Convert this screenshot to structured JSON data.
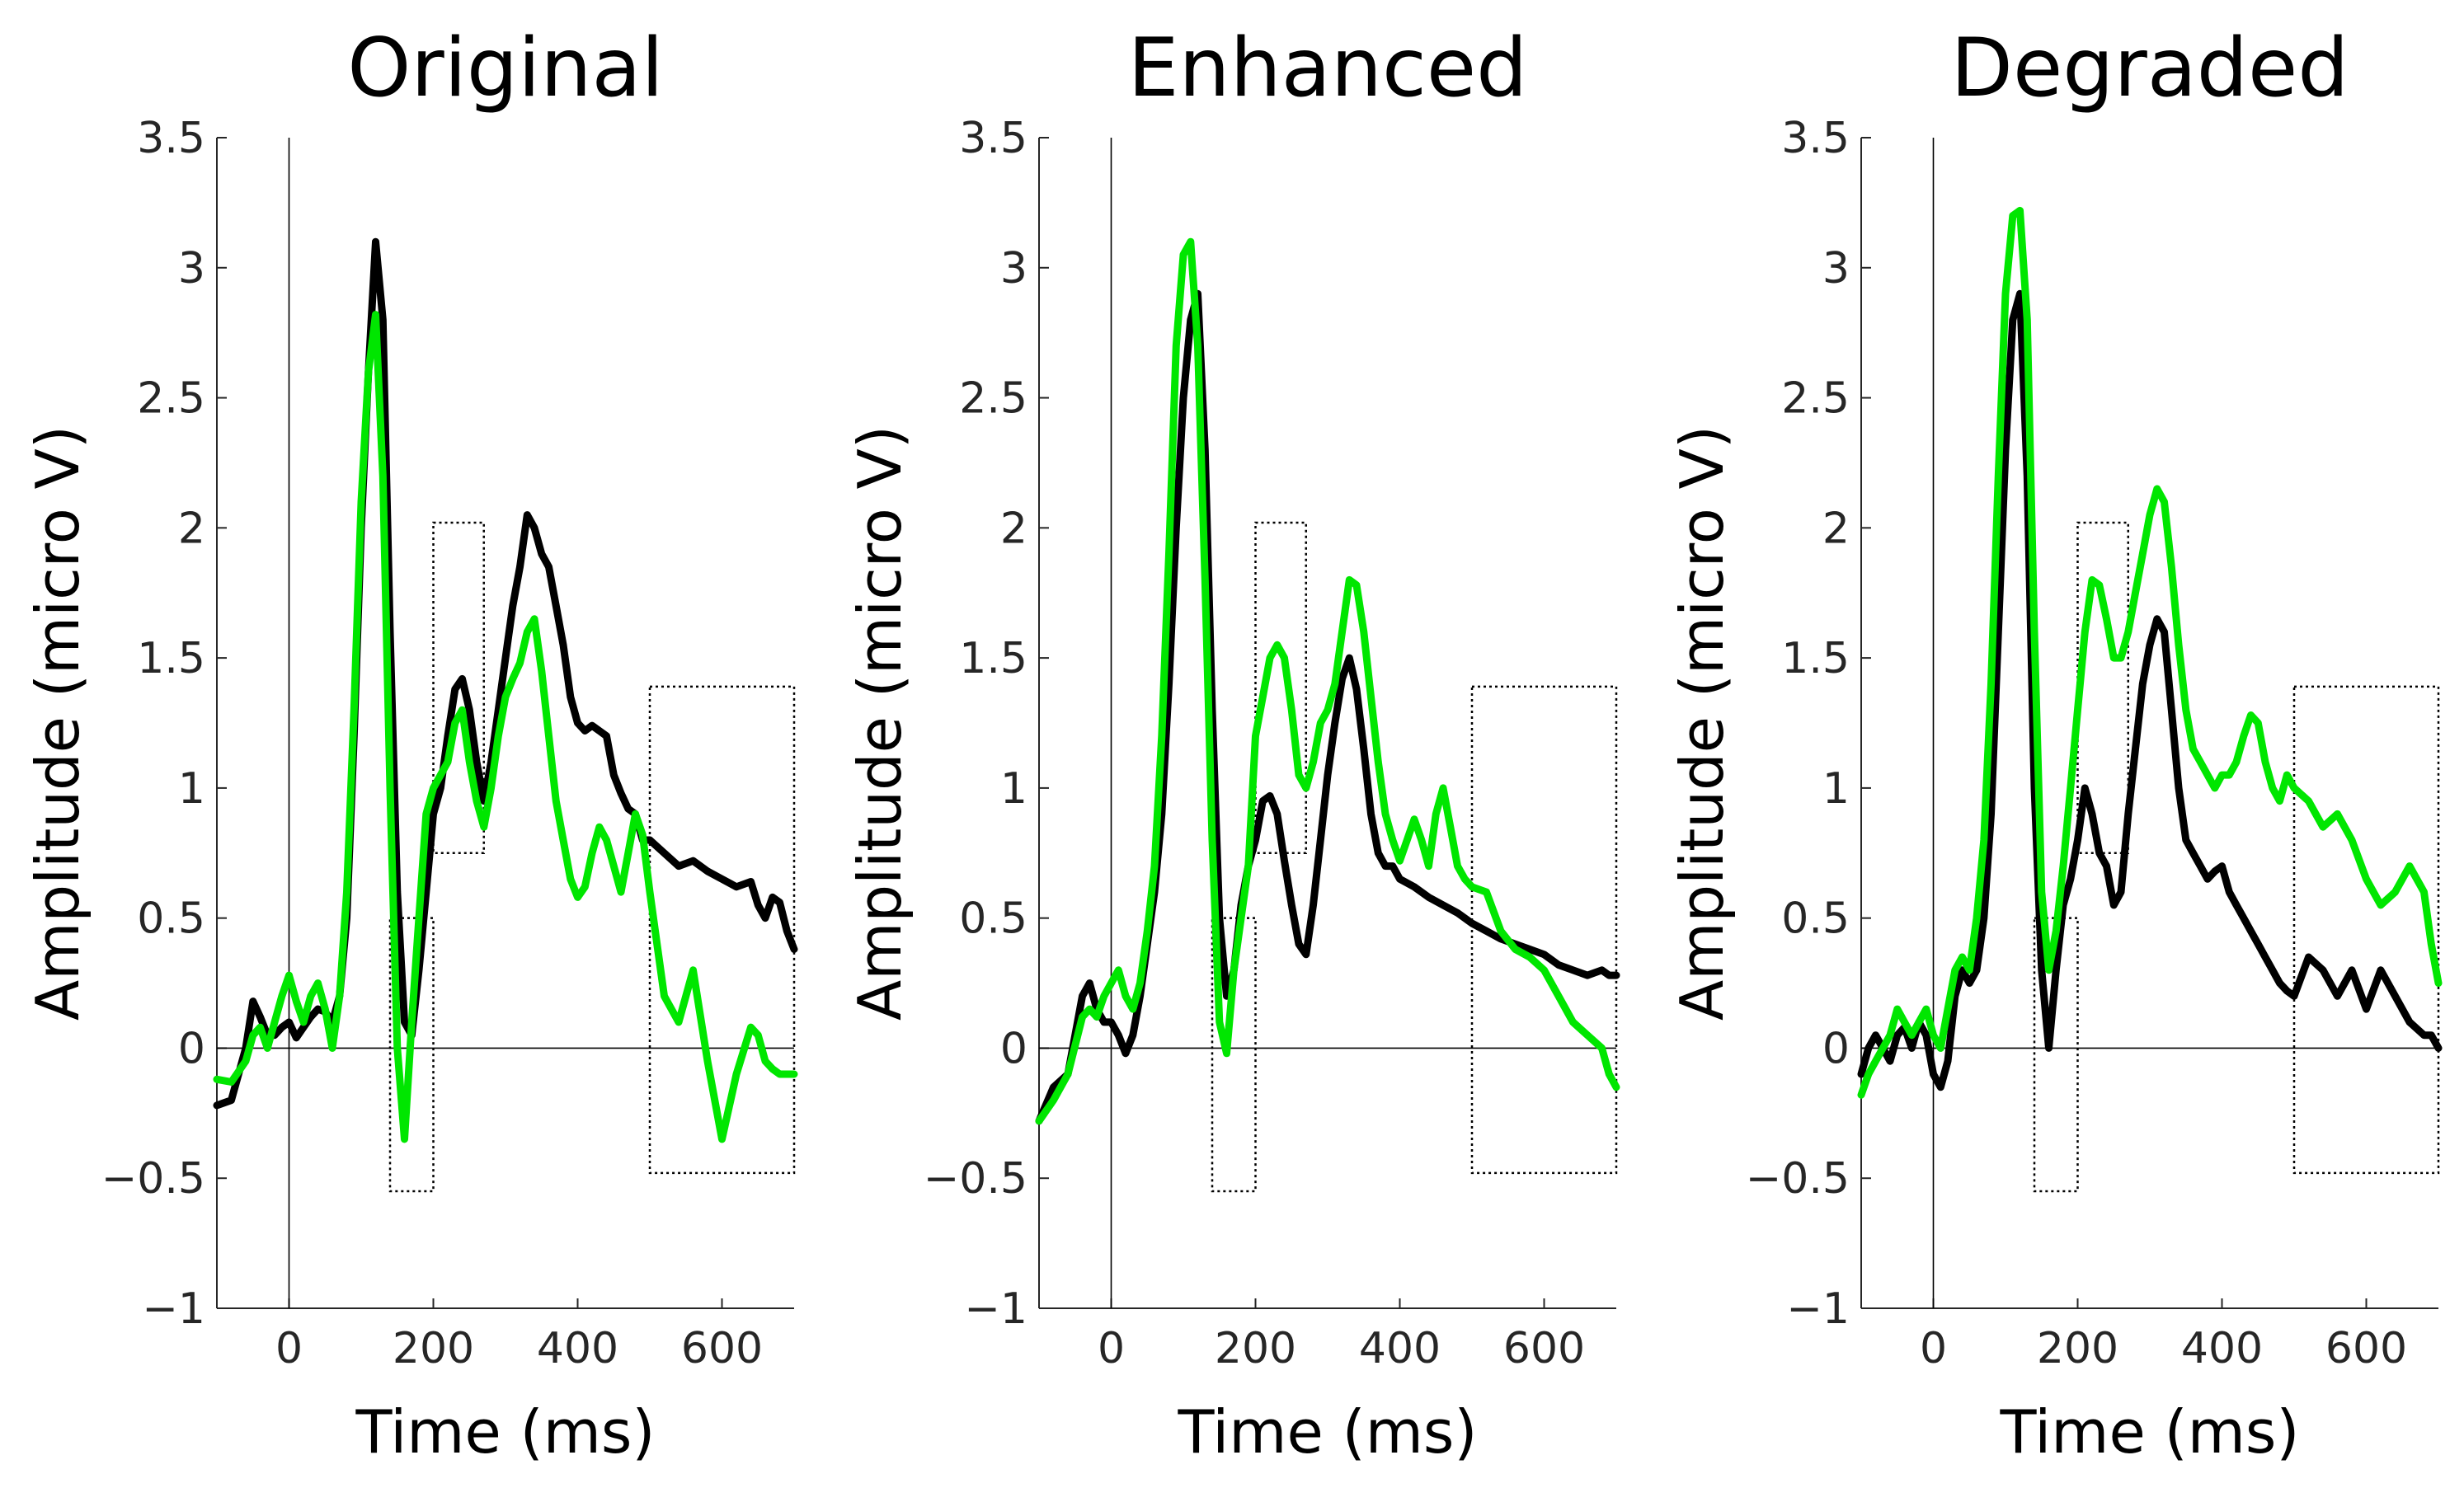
{
  "chart_data": [
    {
      "type": "line",
      "title": "Original",
      "xlabel": "Time (ms)",
      "ylabel": "Amplitude (micro V)",
      "xlim": [
        -100,
        700
      ],
      "ylim": [
        -1,
        3.5
      ],
      "xticks": [
        0,
        200,
        400,
        600
      ],
      "xtick_labels": [
        "0",
        "200",
        "400",
        "600"
      ],
      "yticks": [
        -1,
        -0.5,
        0,
        0.5,
        1,
        1.5,
        2,
        2.5,
        3,
        3.5
      ],
      "ytick_labels": [
        "−1",
        "−0.5",
        "0",
        "0.5",
        "1",
        "1.5",
        "2",
        "2.5",
        "3",
        "3.5"
      ],
      "grid": false,
      "reference_lines": {
        "x": 0,
        "y": 0
      },
      "windows": [
        {
          "x": [
            140,
            200
          ],
          "y": [
            -0.55,
            0.5
          ]
        },
        {
          "x": [
            200,
            270
          ],
          "y": [
            0.75,
            2.02
          ]
        },
        {
          "x": [
            500,
            700
          ],
          "y": [
            -0.48,
            1.39
          ]
        }
      ],
      "series": [
        {
          "name": "black",
          "color": "#000000",
          "x": [
            -100,
            -80,
            -60,
            -50,
            -40,
            -30,
            -20,
            -10,
            0,
            10,
            20,
            30,
            40,
            50,
            60,
            70,
            80,
            90,
            100,
            110,
            120,
            130,
            140,
            150,
            160,
            170,
            180,
            190,
            200,
            210,
            220,
            230,
            240,
            250,
            260,
            270,
            280,
            290,
            300,
            310,
            320,
            330,
            340,
            350,
            360,
            370,
            380,
            390,
            400,
            410,
            420,
            430,
            440,
            450,
            460,
            470,
            480,
            490,
            500,
            520,
            540,
            560,
            580,
            600,
            620,
            640,
            650,
            660,
            670,
            680,
            690,
            700
          ],
          "y": [
            -0.22,
            -0.2,
            0.0,
            0.18,
            0.12,
            0.05,
            0.05,
            0.08,
            0.1,
            0.04,
            0.08,
            0.12,
            0.15,
            0.14,
            0.1,
            0.2,
            0.5,
            1.2,
            2.0,
            2.6,
            3.1,
            2.8,
            1.6,
            0.6,
            0.1,
            0.05,
            0.3,
            0.6,
            0.9,
            1.0,
            1.2,
            1.38,
            1.42,
            1.3,
            1.1,
            0.95,
            1.1,
            1.3,
            1.5,
            1.7,
            1.85,
            2.05,
            2.0,
            1.9,
            1.85,
            1.7,
            1.55,
            1.35,
            1.25,
            1.22,
            1.24,
            1.22,
            1.2,
            1.05,
            0.98,
            0.92,
            0.9,
            0.8,
            0.8,
            0.75,
            0.7,
            0.72,
            0.68,
            0.65,
            0.62,
            0.64,
            0.55,
            0.5,
            0.58,
            0.56,
            0.45,
            0.38
          ]
        },
        {
          "name": "green",
          "color": "#00e600",
          "x": [
            -100,
            -80,
            -60,
            -50,
            -40,
            -30,
            -20,
            -10,
            0,
            10,
            20,
            30,
            40,
            50,
            60,
            70,
            80,
            90,
            100,
            110,
            120,
            130,
            140,
            150,
            160,
            170,
            180,
            190,
            200,
            210,
            220,
            230,
            240,
            250,
            260,
            270,
            280,
            290,
            300,
            310,
            320,
            330,
            340,
            350,
            360,
            370,
            380,
            390,
            400,
            410,
            420,
            430,
            440,
            450,
            460,
            470,
            480,
            490,
            500,
            520,
            540,
            560,
            580,
            600,
            620,
            640,
            650,
            660,
            670,
            680,
            690,
            700
          ],
          "y": [
            -0.12,
            -0.13,
            -0.05,
            0.05,
            0.08,
            0.0,
            0.1,
            0.2,
            0.28,
            0.18,
            0.1,
            0.2,
            0.25,
            0.15,
            0.0,
            0.2,
            0.6,
            1.3,
            2.1,
            2.6,
            2.82,
            2.2,
            1.0,
            0.0,
            -0.35,
            0.1,
            0.5,
            0.9,
            1.0,
            1.05,
            1.1,
            1.25,
            1.3,
            1.1,
            0.95,
            0.85,
            1.0,
            1.2,
            1.35,
            1.42,
            1.48,
            1.6,
            1.65,
            1.45,
            1.2,
            0.95,
            0.8,
            0.65,
            0.58,
            0.62,
            0.75,
            0.85,
            0.8,
            0.7,
            0.6,
            0.75,
            0.9,
            0.82,
            0.6,
            0.2,
            0.1,
            0.3,
            -0.05,
            -0.35,
            -0.1,
            0.08,
            0.05,
            -0.05,
            -0.08,
            -0.1,
            -0.1,
            -0.1
          ]
        }
      ]
    },
    {
      "type": "line",
      "title": "Enhanced",
      "xlabel": "Time (ms)",
      "ylabel": "Amplitude (micro V)",
      "xlim": [
        -100,
        700
      ],
      "ylim": [
        -1,
        3.5
      ],
      "xticks": [
        0,
        200,
        400,
        600
      ],
      "xtick_labels": [
        "0",
        "200",
        "400",
        "600"
      ],
      "yticks": [
        -1,
        -0.5,
        0,
        0.5,
        1,
        1.5,
        2,
        2.5,
        3,
        3.5
      ],
      "ytick_labels": [
        "−1",
        "−0.5",
        "0",
        "0.5",
        "1",
        "1.5",
        "2",
        "2.5",
        "3",
        "3.5"
      ],
      "grid": false,
      "reference_lines": {
        "x": 0,
        "y": 0
      },
      "windows": [
        {
          "x": [
            140,
            200
          ],
          "y": [
            -0.55,
            0.5
          ]
        },
        {
          "x": [
            200,
            270
          ],
          "y": [
            0.75,
            2.02
          ]
        },
        {
          "x": [
            500,
            700
          ],
          "y": [
            -0.48,
            1.39
          ]
        }
      ],
      "series": [
        {
          "name": "black",
          "color": "#000000",
          "x": [
            -100,
            -80,
            -60,
            -40,
            -30,
            -20,
            -10,
            0,
            10,
            20,
            30,
            40,
            50,
            60,
            70,
            80,
            90,
            100,
            110,
            120,
            130,
            140,
            150,
            160,
            170,
            180,
            190,
            200,
            210,
            220,
            230,
            240,
            250,
            260,
            270,
            280,
            290,
            300,
            310,
            320,
            330,
            340,
            350,
            360,
            370,
            380,
            390,
            400,
            420,
            440,
            460,
            480,
            500,
            520,
            540,
            560,
            580,
            600,
            620,
            640,
            660,
            680,
            690,
            700
          ],
          "y": [
            -0.28,
            -0.15,
            -0.1,
            0.2,
            0.25,
            0.15,
            0.1,
            0.1,
            0.05,
            -0.02,
            0.05,
            0.2,
            0.4,
            0.6,
            0.9,
            1.4,
            2.0,
            2.5,
            2.8,
            2.9,
            2.3,
            1.3,
            0.5,
            0.2,
            0.3,
            0.55,
            0.7,
            0.8,
            0.95,
            0.97,
            0.9,
            0.72,
            0.55,
            0.4,
            0.36,
            0.55,
            0.8,
            1.05,
            1.25,
            1.42,
            1.5,
            1.38,
            1.15,
            0.9,
            0.75,
            0.7,
            0.7,
            0.65,
            0.62,
            0.58,
            0.55,
            0.52,
            0.48,
            0.45,
            0.42,
            0.4,
            0.38,
            0.36,
            0.32,
            0.3,
            0.28,
            0.3,
            0.28,
            0.28
          ]
        },
        {
          "name": "green",
          "color": "#00e600",
          "x": [
            -100,
            -80,
            -60,
            -40,
            -30,
            -20,
            -10,
            0,
            10,
            20,
            30,
            40,
            50,
            60,
            70,
            80,
            90,
            100,
            110,
            120,
            130,
            140,
            150,
            160,
            170,
            180,
            190,
            200,
            210,
            220,
            230,
            240,
            250,
            260,
            270,
            280,
            290,
            300,
            310,
            320,
            330,
            340,
            350,
            360,
            370,
            380,
            390,
            400,
            410,
            420,
            430,
            440,
            450,
            460,
            470,
            480,
            490,
            500,
            520,
            540,
            560,
            580,
            600,
            620,
            640,
            660,
            680,
            690,
            700
          ],
          "y": [
            -0.28,
            -0.2,
            -0.1,
            0.12,
            0.15,
            0.12,
            0.2,
            0.25,
            0.3,
            0.2,
            0.15,
            0.25,
            0.45,
            0.7,
            1.2,
            1.9,
            2.7,
            3.05,
            3.1,
            2.7,
            1.8,
            0.8,
            0.1,
            -0.02,
            0.3,
            0.5,
            0.7,
            1.2,
            1.35,
            1.5,
            1.55,
            1.5,
            1.3,
            1.05,
            1.0,
            1.1,
            1.25,
            1.3,
            1.4,
            1.6,
            1.8,
            1.78,
            1.6,
            1.35,
            1.1,
            0.9,
            0.8,
            0.72,
            0.8,
            0.88,
            0.8,
            0.7,
            0.9,
            1.0,
            0.85,
            0.7,
            0.65,
            0.62,
            0.6,
            0.45,
            0.38,
            0.35,
            0.3,
            0.2,
            0.1,
            0.05,
            0.0,
            -0.1,
            -0.15
          ]
        }
      ]
    },
    {
      "type": "line",
      "title": "Degraded",
      "xlabel": "Time (ms)",
      "ylabel": "Amplitude (micro V)",
      "xlim": [
        -100,
        700
      ],
      "ylim": [
        -1,
        3.5
      ],
      "xticks": [
        0,
        200,
        400,
        600
      ],
      "xtick_labels": [
        "0",
        "200",
        "400",
        "600"
      ],
      "yticks": [
        -1,
        -0.5,
        0,
        0.5,
        1,
        1.5,
        2,
        2.5,
        3,
        3.5
      ],
      "ytick_labels": [
        "−1",
        "−0.5",
        "0",
        "0.5",
        "1",
        "1.5",
        "2",
        "2.5",
        "3",
        "3.5"
      ],
      "grid": false,
      "reference_lines": {
        "x": 0,
        "y": 0
      },
      "windows": [
        {
          "x": [
            140,
            200
          ],
          "y": [
            -0.55,
            0.5
          ]
        },
        {
          "x": [
            200,
            270
          ],
          "y": [
            0.75,
            2.02
          ]
        },
        {
          "x": [
            500,
            700
          ],
          "y": [
            -0.48,
            1.39
          ]
        }
      ],
      "series": [
        {
          "name": "black",
          "color": "#000000",
          "x": [
            -100,
            -90,
            -80,
            -70,
            -60,
            -50,
            -40,
            -30,
            -20,
            -10,
            0,
            10,
            20,
            30,
            40,
            50,
            60,
            70,
            80,
            90,
            100,
            110,
            120,
            130,
            140,
            150,
            160,
            170,
            180,
            190,
            200,
            210,
            220,
            230,
            240,
            250,
            260,
            270,
            280,
            290,
            300,
            310,
            320,
            330,
            340,
            350,
            360,
            370,
            380,
            390,
            400,
            410,
            420,
            430,
            440,
            450,
            460,
            470,
            480,
            490,
            500,
            520,
            540,
            560,
            580,
            600,
            620,
            640,
            660,
            680,
            690,
            700
          ],
          "y": [
            -0.1,
            0.0,
            0.05,
            0.0,
            -0.05,
            0.05,
            0.08,
            0.0,
            0.1,
            0.05,
            -0.1,
            -0.15,
            -0.05,
            0.2,
            0.3,
            0.25,
            0.3,
            0.5,
            0.9,
            1.6,
            2.3,
            2.8,
            2.9,
            2.2,
            1.0,
            0.3,
            0.0,
            0.3,
            0.55,
            0.65,
            0.8,
            1.0,
            0.9,
            0.75,
            0.7,
            0.55,
            0.6,
            0.9,
            1.15,
            1.4,
            1.55,
            1.65,
            1.6,
            1.3,
            1.0,
            0.8,
            0.75,
            0.7,
            0.65,
            0.68,
            0.7,
            0.6,
            0.55,
            0.5,
            0.45,
            0.4,
            0.35,
            0.3,
            0.25,
            0.22,
            0.2,
            0.35,
            0.3,
            0.2,
            0.3,
            0.15,
            0.3,
            0.2,
            0.1,
            0.05,
            0.05,
            0.0
          ]
        },
        {
          "name": "green",
          "color": "#00e600",
          "x": [
            -100,
            -90,
            -80,
            -70,
            -60,
            -50,
            -40,
            -30,
            -20,
            -10,
            0,
            10,
            20,
            30,
            40,
            50,
            60,
            70,
            80,
            90,
            100,
            110,
            120,
            130,
            140,
            150,
            160,
            170,
            180,
            190,
            200,
            210,
            220,
            230,
            240,
            250,
            260,
            270,
            280,
            290,
            300,
            310,
            320,
            330,
            340,
            350,
            360,
            370,
            380,
            390,
            400,
            410,
            420,
            430,
            440,
            450,
            460,
            470,
            480,
            490,
            500,
            520,
            540,
            560,
            580,
            600,
            620,
            640,
            660,
            680,
            690,
            700
          ],
          "y": [
            -0.18,
            -0.1,
            -0.05,
            0.0,
            0.05,
            0.15,
            0.1,
            0.05,
            0.1,
            0.15,
            0.05,
            0.0,
            0.15,
            0.3,
            0.35,
            0.3,
            0.5,
            0.8,
            1.4,
            2.2,
            2.9,
            3.2,
            3.22,
            2.8,
            1.6,
            0.6,
            0.3,
            0.45,
            0.7,
            1.0,
            1.3,
            1.6,
            1.8,
            1.78,
            1.65,
            1.5,
            1.5,
            1.6,
            1.75,
            1.9,
            2.05,
            2.15,
            2.1,
            1.85,
            1.55,
            1.3,
            1.15,
            1.1,
            1.05,
            1.0,
            1.05,
            1.05,
            1.1,
            1.2,
            1.28,
            1.25,
            1.1,
            1.0,
            0.95,
            1.05,
            1.0,
            0.95,
            0.85,
            0.9,
            0.8,
            0.65,
            0.55,
            0.6,
            0.7,
            0.6,
            0.4,
            0.25
          ]
        }
      ]
    }
  ]
}
